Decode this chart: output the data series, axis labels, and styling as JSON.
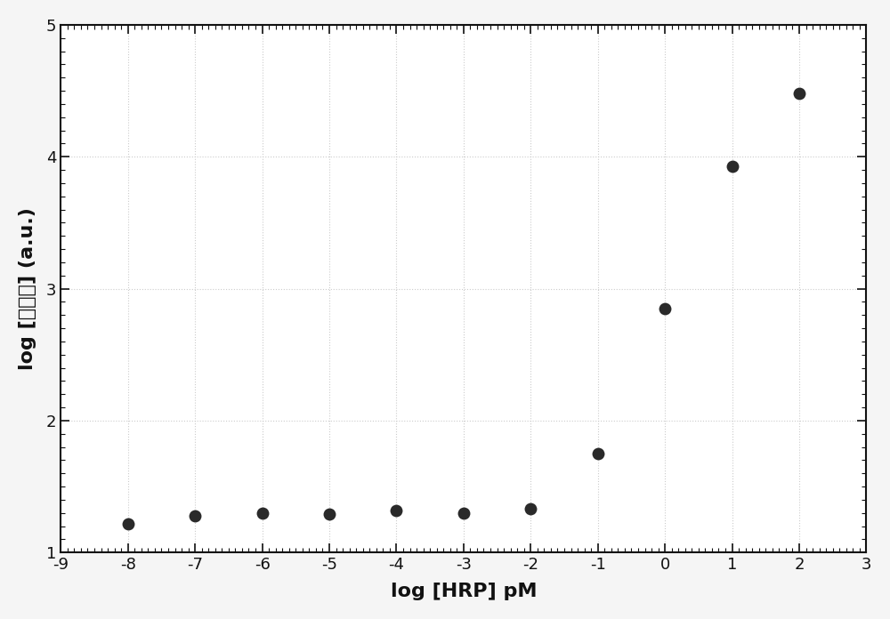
{
  "x": [
    -8,
    -7,
    -6,
    -5,
    -4,
    -3,
    -2,
    -1,
    0,
    1,
    2
  ],
  "y": [
    1.22,
    1.28,
    1.3,
    1.29,
    1.32,
    1.3,
    1.33,
    1.75,
    2.85,
    3.93,
    4.48
  ],
  "xlabel": "log [HRP] pM",
  "ylabel": "log [读出器] (a.u.)",
  "xlim": [
    -9,
    3
  ],
  "ylim": [
    1,
    5
  ],
  "xticks": [
    -9,
    -8,
    -7,
    -6,
    -5,
    -4,
    -3,
    -2,
    -1,
    0,
    1,
    2,
    3
  ],
  "yticks": [
    1,
    2,
    3,
    4,
    5
  ],
  "marker_color": "#2a2a2a",
  "marker_size": 10,
  "background_color": "#f5f5f5",
  "plot_bg_color": "#ffffff",
  "grid_color": "#cccccc",
  "spine_color": "#111111",
  "tick_color": "#111111",
  "xlabel_fontsize": 16,
  "ylabel_fontsize": 16,
  "tick_fontsize": 13
}
